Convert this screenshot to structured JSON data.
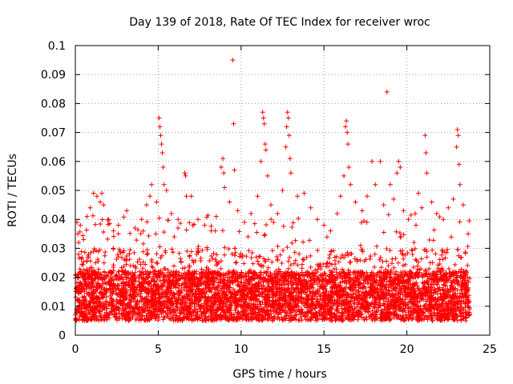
{
  "chart_data": {
    "type": "scatter",
    "title": "Day 139 of 2018, Rate Of TEC Index for receiver wroc",
    "xlabel": "GPS time / hours",
    "ylabel": "ROTI / TECUs",
    "xlim": [
      0,
      25
    ],
    "ylim": [
      0,
      0.1
    ],
    "x_ticks": [
      0,
      5,
      10,
      15,
      20,
      25
    ],
    "x_tick_labels": [
      "0",
      "5",
      "10",
      "15",
      "20",
      "25"
    ],
    "y_ticks": [
      0,
      0.01,
      0.02,
      0.03,
      0.04,
      0.05,
      0.06,
      0.07,
      0.08,
      0.09,
      0.1
    ],
    "y_tick_labels": [
      "0",
      "0.01",
      "0.02",
      "0.03",
      "0.04",
      "0.05",
      "0.06",
      "0.07",
      "0.08",
      "0.09",
      "0.1"
    ],
    "grid": true,
    "marker": "+",
    "series_color": "#ff0000",
    "data_x_range": [
      0,
      23.8
    ],
    "dense_band": [
      0.005,
      0.03
    ],
    "points": [
      [
        0.1,
        0.039
      ],
      [
        0.15,
        0.035
      ],
      [
        0.2,
        0.032
      ],
      [
        0.3,
        0.038
      ],
      [
        0.5,
        0.033
      ],
      [
        0.7,
        0.041
      ],
      [
        0.9,
        0.044
      ],
      [
        1.1,
        0.049
      ],
      [
        1.3,
        0.048
      ],
      [
        1.5,
        0.046
      ],
      [
        1.6,
        0.049
      ],
      [
        1.7,
        0.045
      ],
      [
        2.0,
        0.04
      ],
      [
        2.3,
        0.036
      ],
      [
        2.6,
        0.038
      ],
      [
        3.1,
        0.043
      ],
      [
        3.6,
        0.037
      ],
      [
        4.0,
        0.04
      ],
      [
        4.3,
        0.045
      ],
      [
        4.5,
        0.048
      ],
      [
        4.6,
        0.052
      ],
      [
        4.9,
        0.046
      ],
      [
        5.05,
        0.075
      ],
      [
        5.1,
        0.072
      ],
      [
        5.15,
        0.069
      ],
      [
        5.2,
        0.066
      ],
      [
        5.25,
        0.063
      ],
      [
        5.3,
        0.058
      ],
      [
        5.35,
        0.052
      ],
      [
        5.5,
        0.05
      ],
      [
        5.8,
        0.042
      ],
      [
        6.2,
        0.04
      ],
      [
        6.6,
        0.056
      ],
      [
        6.65,
        0.055
      ],
      [
        6.7,
        0.048
      ],
      [
        7.0,
        0.048
      ],
      [
        7.4,
        0.04
      ],
      [
        7.8,
        0.038
      ],
      [
        8.2,
        0.036
      ],
      [
        8.5,
        0.041
      ],
      [
        8.8,
        0.058
      ],
      [
        8.9,
        0.061
      ],
      [
        8.95,
        0.056
      ],
      [
        9.0,
        0.051
      ],
      [
        9.3,
        0.046
      ],
      [
        9.5,
        0.095
      ],
      [
        9.55,
        0.073
      ],
      [
        9.6,
        0.057
      ],
      [
        9.8,
        0.043
      ],
      [
        10.2,
        0.039
      ],
      [
        10.6,
        0.042
      ],
      [
        11.0,
        0.048
      ],
      [
        11.2,
        0.06
      ],
      [
        11.3,
        0.077
      ],
      [
        11.35,
        0.075
      ],
      [
        11.4,
        0.073
      ],
      [
        11.45,
        0.066
      ],
      [
        11.5,
        0.064
      ],
      [
        11.6,
        0.055
      ],
      [
        11.8,
        0.045
      ],
      [
        12.2,
        0.042
      ],
      [
        12.5,
        0.05
      ],
      [
        12.7,
        0.065
      ],
      [
        12.75,
        0.072
      ],
      [
        12.8,
        0.077
      ],
      [
        12.85,
        0.075
      ],
      [
        12.9,
        0.069
      ],
      [
        12.95,
        0.061
      ],
      [
        13.0,
        0.056
      ],
      [
        13.4,
        0.048
      ],
      [
        13.8,
        0.049
      ],
      [
        14.2,
        0.044
      ],
      [
        14.6,
        0.04
      ],
      [
        15.0,
        0.038
      ],
      [
        15.4,
        0.036
      ],
      [
        15.8,
        0.042
      ],
      [
        16.0,
        0.048
      ],
      [
        16.2,
        0.055
      ],
      [
        16.3,
        0.072
      ],
      [
        16.35,
        0.074
      ],
      [
        16.4,
        0.07
      ],
      [
        16.45,
        0.066
      ],
      [
        16.5,
        0.058
      ],
      [
        16.6,
        0.052
      ],
      [
        16.9,
        0.046
      ],
      [
        17.3,
        0.043
      ],
      [
        17.6,
        0.048
      ],
      [
        17.9,
        0.06
      ],
      [
        18.1,
        0.052
      ],
      [
        18.4,
        0.06
      ],
      [
        18.6,
        0.045
      ],
      [
        18.8,
        0.084
      ],
      [
        19.0,
        0.052
      ],
      [
        19.2,
        0.047
      ],
      [
        19.4,
        0.056
      ],
      [
        19.5,
        0.06
      ],
      [
        19.6,
        0.058
      ],
      [
        19.8,
        0.043
      ],
      [
        20.1,
        0.04
      ],
      [
        20.5,
        0.042
      ],
      [
        20.7,
        0.049
      ],
      [
        20.9,
        0.044
      ],
      [
        21.1,
        0.069
      ],
      [
        21.15,
        0.063
      ],
      [
        21.2,
        0.056
      ],
      [
        21.5,
        0.046
      ],
      [
        21.8,
        0.042
      ],
      [
        22.2,
        0.04
      ],
      [
        22.5,
        0.044
      ],
      [
        22.8,
        0.047
      ],
      [
        23.0,
        0.065
      ],
      [
        23.05,
        0.071
      ],
      [
        23.1,
        0.069
      ],
      [
        23.15,
        0.059
      ],
      [
        23.2,
        0.052
      ],
      [
        23.4,
        0.045
      ],
      [
        23.7,
        0.035
      ]
    ]
  }
}
